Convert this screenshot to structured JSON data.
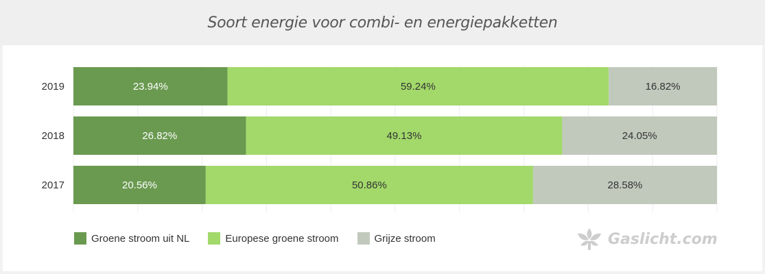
{
  "title": "Soort energie voor combi- en energiepakketten",
  "brand": {
    "name": "Gaslicht.com",
    "logo_icon": "gaslicht-flame-icon"
  },
  "colors": {
    "groene_nl": "#6a9a50",
    "europese": "#a2d96a",
    "grijze": "#c1c9bc"
  },
  "chart_data": {
    "type": "bar",
    "orientation": "horizontal",
    "stacked": true,
    "percent": true,
    "categories": [
      "2019",
      "2018",
      "2017"
    ],
    "series": [
      {
        "name": "Groene stroom uit NL",
        "values": [
          23.94,
          26.82,
          20.56
        ],
        "labels": [
          "23.94%",
          "26.82%",
          "20.56%"
        ],
        "color": "#6a9a50",
        "label_color": "#ffffff"
      },
      {
        "name": "Europese groene stroom",
        "values": [
          59.24,
          49.13,
          50.86
        ],
        "labels": [
          "59.24%",
          "49.13%",
          "50.86%"
        ],
        "color": "#a2d96a",
        "label_color": "#333333"
      },
      {
        "name": "Grijze stroom",
        "values": [
          16.82,
          24.05,
          28.58
        ],
        "labels": [
          "16.82%",
          "24.05%",
          "28.58%"
        ],
        "color": "#c1c9bc",
        "label_color": "#333333"
      }
    ],
    "xlim": [
      0,
      100
    ],
    "grid": true,
    "legend": "bottom-left"
  }
}
